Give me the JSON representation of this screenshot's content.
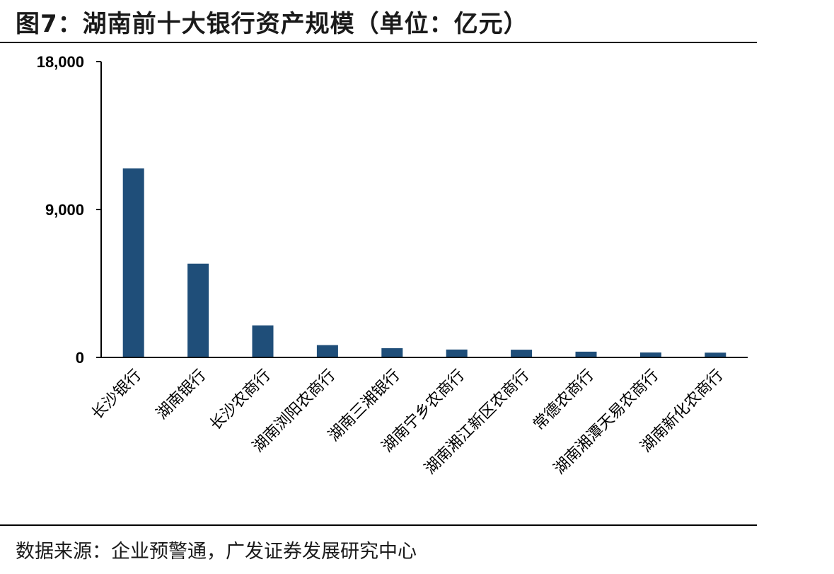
{
  "title": "图7：湖南前十大银行资产规模（单位：亿元）",
  "source": "数据来源：企业预警通，广发证券发展研究中心",
  "colors": {
    "bar": "#1f4e79",
    "axis": "#000000"
  },
  "chart_data": {
    "type": "bar",
    "title": "图7：湖南前十大银行资产规模（单位：亿元）",
    "xlabel": "",
    "ylabel": "",
    "ylim": [
      0,
      18000
    ],
    "yticks": [
      0,
      9000,
      18000
    ],
    "ytick_labels": [
      "0",
      "9,000",
      "18,000"
    ],
    "grid": false,
    "legend": "none",
    "categories": [
      "长沙银行",
      "湖南银行",
      "长沙农商行",
      "湖南浏阳农商行",
      "湖南三湘银行",
      "湖南宁乡农商行",
      "湖南湘江新区农商行",
      "常德农商行",
      "湖南湘潭天易农商行",
      "湖南新化农商行"
    ],
    "values": [
      11500,
      5700,
      1950,
      750,
      560,
      480,
      470,
      350,
      300,
      290
    ]
  }
}
